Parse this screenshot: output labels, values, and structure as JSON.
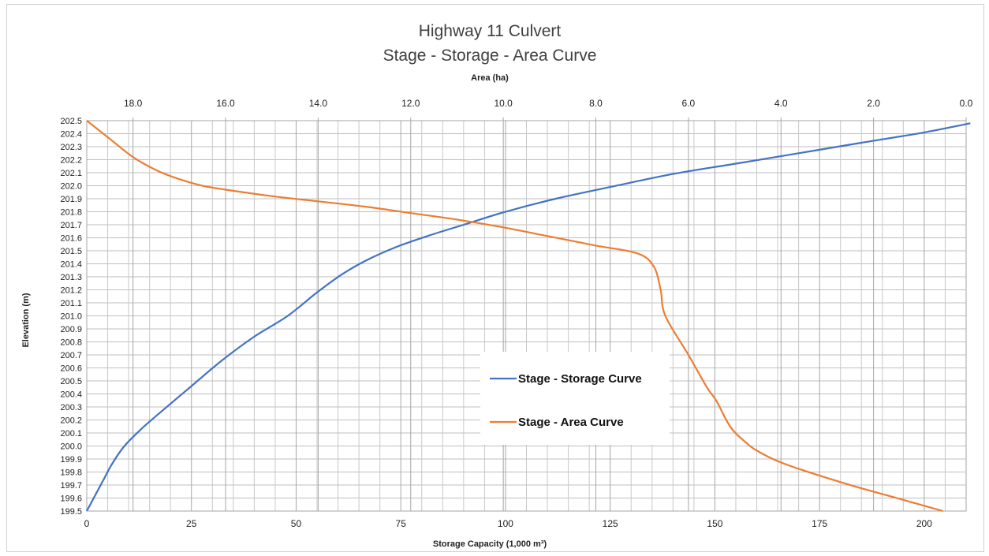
{
  "chart_data": {
    "type": "line",
    "title": "Highway 11 Culvert",
    "subtitle": "Stage - Storage - Area Curve",
    "xlabel": "Storage Capacity (1,000 m³)",
    "x2label": "Area (ha)",
    "ylabel": "Elevation (m)",
    "xlim": [
      0,
      210
    ],
    "x2lim": [
      19.0,
      0.0
    ],
    "x2_reversed": true,
    "ylim": [
      199.5,
      202.5
    ],
    "x_ticks": [
      "0",
      "25",
      "50",
      "75",
      "100",
      "125",
      "150",
      "175",
      "200"
    ],
    "x2_ticks": [
      "18.0",
      "16.0",
      "14.0",
      "12.0",
      "10.0",
      "8.0",
      "6.0",
      "4.0",
      "2.0",
      "0.0"
    ],
    "y_ticks": [
      "199.5",
      "199.6",
      "199.7",
      "199.8",
      "199.9",
      "200.0",
      "200.1",
      "200.2",
      "200.3",
      "200.4",
      "200.5",
      "200.6",
      "200.7",
      "200.8",
      "200.9",
      "201.0",
      "201.1",
      "201.2",
      "201.3",
      "201.4",
      "201.5",
      "201.6",
      "201.7",
      "201.8",
      "201.9",
      "202.0",
      "202.1",
      "202.2",
      "202.3",
      "202.4",
      "202.5"
    ],
    "grid": true,
    "legend_position": "center-right",
    "series": [
      {
        "name": "Stage - Storage Curve",
        "axis": "storage",
        "color": "#4472C4",
        "points": [
          [
            0,
            199.5
          ],
          [
            2,
            199.62
          ],
          [
            4,
            199.74
          ],
          [
            6,
            199.86
          ],
          [
            9,
            200.0
          ],
          [
            13,
            200.13
          ],
          [
            18,
            200.27
          ],
          [
            25,
            200.46
          ],
          [
            32,
            200.65
          ],
          [
            40,
            200.84
          ],
          [
            48,
            201.0
          ],
          [
            55,
            201.18
          ],
          [
            61,
            201.32
          ],
          [
            67,
            201.43
          ],
          [
            74,
            201.53
          ],
          [
            82,
            201.62
          ],
          [
            90,
            201.7
          ],
          [
            100,
            201.8
          ],
          [
            112,
            201.9
          ],
          [
            125,
            201.99
          ],
          [
            140,
            202.09
          ],
          [
            155,
            202.17
          ],
          [
            170,
            202.25
          ],
          [
            185,
            202.33
          ],
          [
            200,
            202.41
          ],
          [
            211,
            202.48
          ]
        ]
      },
      {
        "name": "Stage - Area Curve",
        "axis": "area",
        "color": "#ED7D31",
        "points": [
          [
            0.5,
            199.5
          ],
          [
            1.5,
            199.6
          ],
          [
            2.6,
            199.71
          ],
          [
            3.9,
            199.86
          ],
          [
            4.5,
            199.96
          ],
          [
            4.8,
            200.04
          ],
          [
            5.1,
            200.15
          ],
          [
            5.4,
            200.35
          ],
          [
            5.6,
            200.45
          ],
          [
            6.0,
            200.7
          ],
          [
            6.5,
            201.0
          ],
          [
            6.6,
            201.2
          ],
          [
            6.75,
            201.38
          ],
          [
            7.1,
            201.48
          ],
          [
            8.0,
            201.54
          ],
          [
            9.0,
            201.61
          ],
          [
            10.0,
            201.68
          ],
          [
            11.0,
            201.74
          ],
          [
            12.0,
            201.79
          ],
          [
            13.0,
            201.84
          ],
          [
            14.0,
            201.88
          ],
          [
            15.0,
            201.92
          ],
          [
            16.0,
            201.97
          ],
          [
            16.5,
            202.0
          ],
          [
            17.0,
            202.05
          ],
          [
            17.5,
            202.12
          ],
          [
            18.0,
            202.22
          ],
          [
            18.5,
            202.36
          ],
          [
            19.0,
            202.5
          ]
        ]
      }
    ]
  },
  "frame": {
    "background": "#ffffff",
    "grid_color": "#bfbfbf",
    "border_color": "#d0d0d0"
  }
}
